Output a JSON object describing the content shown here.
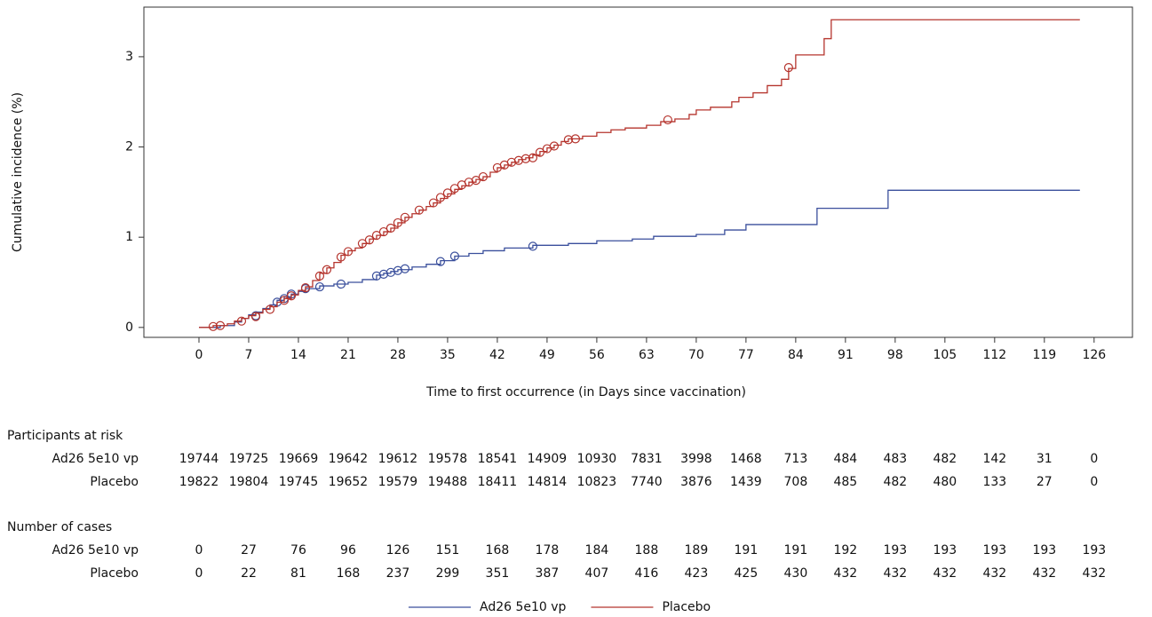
{
  "chart_data": {
    "type": "step",
    "x_label": "Time to first occurrence (in Days since vaccination)",
    "y_label": "Cumulative incidence (%)",
    "xlim": [
      -7.75,
      131.4
    ],
    "ylim": [
      -0.11,
      3.55
    ],
    "xticks": [
      0,
      7,
      14,
      21,
      28,
      35,
      42,
      49,
      56,
      63,
      70,
      77,
      84,
      91,
      98,
      105,
      112,
      119,
      126
    ],
    "yticks": [
      0,
      1,
      2,
      3
    ],
    "series": [
      {
        "name": "Ad26 5e10 vp",
        "color": "#3a4f9c",
        "x": [
          0,
          3,
          5,
          6,
          7,
          8,
          9,
          10,
          11,
          12,
          13,
          14,
          15,
          17,
          19,
          21,
          23,
          25,
          26,
          27,
          28,
          30,
          32,
          34,
          36,
          38,
          40,
          43,
          47,
          52,
          56,
          61,
          64,
          70,
          74,
          77,
          87,
          97,
          124
        ],
        "values": [
          0,
          0.02,
          0.06,
          0.1,
          0.14,
          0.17,
          0.21,
          0.25,
          0.3,
          0.34,
          0.37,
          0.4,
          0.43,
          0.46,
          0.48,
          0.5,
          0.53,
          0.58,
          0.6,
          0.62,
          0.64,
          0.67,
          0.7,
          0.74,
          0.79,
          0.82,
          0.85,
          0.88,
          0.91,
          0.93,
          0.96,
          0.98,
          1.01,
          1.03,
          1.08,
          1.14,
          1.32,
          1.52,
          1.52
        ],
        "censored_x": [
          8,
          11,
          12,
          13,
          15,
          17,
          20,
          25,
          26,
          27,
          28,
          29,
          34,
          36,
          47
        ],
        "censored_y": [
          0.13,
          0.28,
          0.32,
          0.37,
          0.43,
          0.45,
          0.48,
          0.57,
          0.59,
          0.61,
          0.63,
          0.65,
          0.73,
          0.79,
          0.9
        ]
      },
      {
        "name": "Placebo",
        "color": "#b5342d",
        "x": [
          0,
          2,
          4,
          5,
          6,
          7,
          8,
          9,
          10,
          11,
          12,
          13,
          14,
          15,
          16,
          17,
          18,
          19,
          20,
          21,
          22,
          23,
          24,
          25,
          26,
          27,
          28,
          29,
          30,
          31,
          32,
          33,
          34,
          35,
          36,
          37,
          38,
          39,
          40,
          41,
          42,
          43,
          44,
          45,
          46,
          47,
          48,
          49,
          50,
          51,
          52,
          54,
          56,
          58,
          60,
          63,
          65,
          67,
          69,
          70,
          72,
          75,
          76,
          78,
          80,
          82,
          83,
          84,
          88,
          89,
          124
        ],
        "values": [
          0,
          0.02,
          0.04,
          0.07,
          0.1,
          0.13,
          0.16,
          0.2,
          0.23,
          0.28,
          0.32,
          0.36,
          0.41,
          0.45,
          0.52,
          0.6,
          0.66,
          0.72,
          0.8,
          0.85,
          0.88,
          0.93,
          0.98,
          1.02,
          1.06,
          1.1,
          1.16,
          1.22,
          1.26,
          1.3,
          1.34,
          1.38,
          1.43,
          1.48,
          1.53,
          1.57,
          1.61,
          1.64,
          1.67,
          1.72,
          1.77,
          1.8,
          1.83,
          1.86,
          1.88,
          1.91,
          1.95,
          1.99,
          2.02,
          2.06,
          2.09,
          2.12,
          2.16,
          2.19,
          2.21,
          2.24,
          2.28,
          2.31,
          2.36,
          2.41,
          2.44,
          2.5,
          2.55,
          2.6,
          2.68,
          2.75,
          2.87,
          3.02,
          3.2,
          3.41,
          3.41
        ],
        "censored_x": [
          2,
          3,
          6,
          8,
          10,
          12,
          13,
          15,
          17,
          18,
          20,
          21,
          23,
          24,
          25,
          26,
          27,
          28,
          29,
          31,
          33,
          34,
          35,
          36,
          37,
          38,
          39,
          40,
          42,
          43,
          44,
          45,
          46,
          47,
          48,
          49,
          50,
          52,
          53,
          66,
          83
        ],
        "censored_y": [
          0.01,
          0.02,
          0.07,
          0.12,
          0.2,
          0.3,
          0.35,
          0.44,
          0.57,
          0.64,
          0.78,
          0.84,
          0.93,
          0.97,
          1.02,
          1.06,
          1.1,
          1.16,
          1.22,
          1.3,
          1.38,
          1.44,
          1.49,
          1.54,
          1.58,
          1.61,
          1.63,
          1.67,
          1.77,
          1.8,
          1.83,
          1.85,
          1.87,
          1.88,
          1.94,
          1.98,
          2.01,
          2.08,
          2.09,
          2.3,
          2.88
        ]
      }
    ],
    "tables": [
      {
        "title": "Participants at risk",
        "rows": [
          {
            "label": "Ad26 5e10 vp",
            "values": [
              19744,
              19725,
              19669,
              19642,
              19612,
              19578,
              18541,
              14909,
              10930,
              7831,
              3998,
              1468,
              713,
              484,
              483,
              482,
              142,
              31,
              0
            ]
          },
          {
            "label": "Placebo",
            "values": [
              19822,
              19804,
              19745,
              19652,
              19579,
              19488,
              18411,
              14814,
              10823,
              7740,
              3876,
              1439,
              708,
              485,
              482,
              480,
              133,
              27,
              0
            ]
          }
        ]
      },
      {
        "title": "Number of cases",
        "rows": [
          {
            "label": "Ad26 5e10 vp",
            "values": [
              0,
              27,
              76,
              96,
              126,
              151,
              168,
              178,
              184,
              188,
              189,
              191,
              191,
              192,
              193,
              193,
              193,
              193,
              193
            ]
          },
          {
            "label": "Placebo",
            "values": [
              0,
              22,
              81,
              168,
              237,
              299,
              351,
              387,
              407,
              416,
              423,
              425,
              430,
              432,
              432,
              432,
              432,
              432,
              432
            ]
          }
        ]
      }
    ]
  }
}
